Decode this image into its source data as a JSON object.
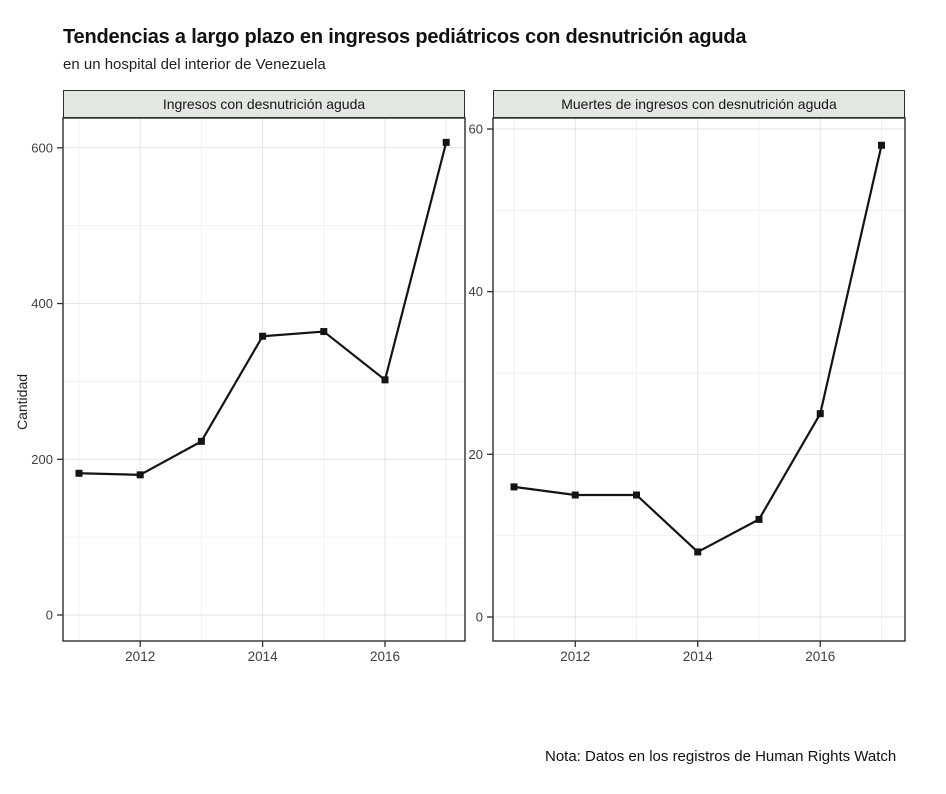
{
  "header": {
    "title": "Tendencias a largo plazo en ingresos pediátricos con desnutrición aguda",
    "subtitle": "en un hospital del interior de Venezuela"
  },
  "note": "Nota: Datos en los registros de Human Rights Watch",
  "chart_data": {
    "type": "line",
    "x": [
      2011,
      2012,
      2013,
      2014,
      2015,
      2016,
      2017
    ],
    "x_ticks": [
      2012,
      2014,
      2016
    ],
    "x_minor": [
      2011,
      2013,
      2015,
      2017
    ],
    "xlabel": "",
    "ylabel": "Cantidad",
    "grid": true,
    "legend": "none",
    "panels": [
      {
        "label": "Ingresos con desnutrición aguda",
        "values": [
          182,
          180,
          223,
          358,
          364,
          302,
          607
        ],
        "y_ticks": [
          0,
          200,
          400,
          600
        ],
        "ylim": [
          -33,
          638
        ]
      },
      {
        "label": "Muertes de ingresos con desnutrición aguda",
        "values": [
          16,
          15,
          15,
          8,
          12,
          25,
          58
        ],
        "y_ticks": [
          0,
          20,
          40,
          60
        ],
        "ylim": [
          -3,
          61
        ]
      }
    ],
    "colors": {
      "line": "#141414",
      "marker": "#141414",
      "grid_major": "#e3e3e3",
      "grid_minor": "#f1f1f1",
      "panel_border": "#2e2e2e",
      "strip_bg": "#e3e7e2",
      "tick_label": "#3f3f3f"
    }
  }
}
